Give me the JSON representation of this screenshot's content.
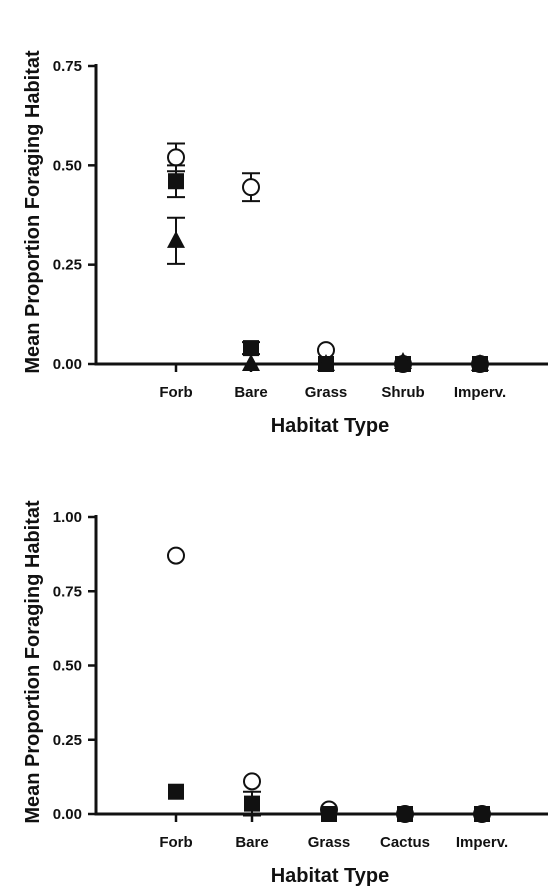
{
  "chart_data": [
    {
      "type": "scatter",
      "xlabel": "Habitat Type",
      "ylabel": "Mean Proportion  Foraging  Habitat",
      "categories": [
        "Forb",
        "Bare",
        "Grass",
        "Shrub",
        "Imperv."
      ],
      "ylim": [
        0,
        0.75
      ],
      "yticks": [
        "0.00",
        "0.25",
        "0.50",
        "0.75"
      ],
      "grid": false,
      "series": [
        {
          "marker": "open-circle",
          "values": [
            0.52,
            0.445,
            0.035,
            0.0,
            0.0
          ],
          "err": [
            0.035,
            0.035,
            0,
            0,
            0
          ]
        },
        {
          "marker": "filled-square",
          "values": [
            0.46,
            0.04,
            0.0,
            0.0,
            0.0
          ],
          "err": [
            0.04,
            0.015,
            0,
            0,
            0
          ]
        },
        {
          "marker": "filled-triangle",
          "values": [
            0.31,
            0.0,
            0.0,
            0.005,
            0.0
          ],
          "err": [
            0.058,
            0,
            0,
            0,
            0
          ]
        }
      ]
    },
    {
      "type": "scatter",
      "xlabel": "Habitat Type",
      "ylabel": "Mean Proportion  Foraging  Habitat",
      "categories": [
        "Forb",
        "Bare",
        "Grass",
        "Cactus",
        "Imperv."
      ],
      "ylim": [
        0,
        1.0
      ],
      "yticks": [
        "0.00",
        "0.25",
        "0.50",
        "0.75",
        "1.00"
      ],
      "grid": false,
      "series": [
        {
          "marker": "open-circle",
          "values": [
            0.87,
            0.11,
            0.015,
            0.0,
            0.0
          ],
          "err": [
            0,
            0,
            0,
            0,
            0
          ]
        },
        {
          "marker": "filled-square",
          "values": [
            0.075,
            0.035,
            0.0,
            0.0,
            0.0
          ],
          "err": [
            0,
            0.04,
            0,
            0,
            0
          ]
        }
      ]
    }
  ]
}
